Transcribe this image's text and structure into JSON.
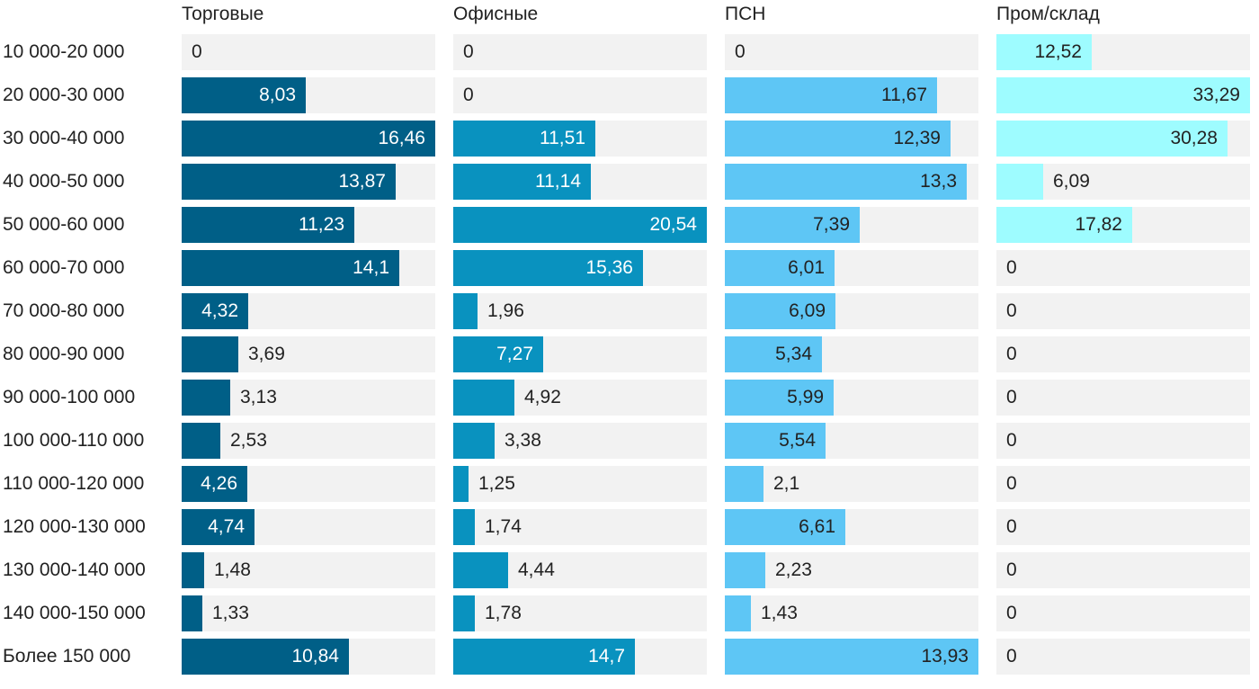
{
  "chart_data": {
    "type": "bar",
    "orientation": "horizontal",
    "layout": "small-multiples",
    "categories": [
      "10 000-20 000",
      "20 000-30 000",
      "30 000-40 000",
      "40 000-50 000",
      "50 000-60 000",
      "60 000-70 000",
      "70 000-80 000",
      "80 000-90 000",
      "90 000-100 000",
      "100 000-110 000",
      "110 000-120 000",
      "120 000-130 000",
      "130 000-140 000",
      "140 000-150 000",
      "Более 150 000"
    ],
    "series": [
      {
        "name": "Торговые",
        "color": "#005f87",
        "light_label": false,
        "values": [
          0,
          8.03,
          16.46,
          13.87,
          11.23,
          14.1,
          4.32,
          3.69,
          3.13,
          2.53,
          4.26,
          4.74,
          1.48,
          1.33,
          10.84
        ],
        "labels": [
          "0",
          "8,03",
          "16,46",
          "13,87",
          "11,23",
          "14,1",
          "4,32",
          "3,69",
          "3,13",
          "2,53",
          "4,26",
          "4,74",
          "1,48",
          "1,33",
          "10,84"
        ],
        "xlim": [
          0,
          16.46
        ]
      },
      {
        "name": "Офисные",
        "color": "#0992bf",
        "light_label": false,
        "values": [
          0,
          0,
          11.51,
          11.14,
          20.54,
          15.36,
          1.96,
          7.27,
          4.92,
          3.38,
          1.25,
          1.74,
          4.44,
          1.78,
          14.7
        ],
        "labels": [
          "0",
          "0",
          "11,51",
          "11,14",
          "20,54",
          "15,36",
          "1,96",
          "7,27",
          "4,92",
          "3,38",
          "1,25",
          "1,74",
          "4,44",
          "1,78",
          "14,7"
        ],
        "xlim": [
          0,
          20.54
        ]
      },
      {
        "name": "ПСН",
        "color": "#5ec6f5",
        "light_label": true,
        "values": [
          0,
          11.67,
          12.39,
          13.3,
          7.39,
          6.01,
          6.09,
          5.34,
          5.99,
          5.54,
          2.1,
          6.61,
          2.23,
          1.43,
          13.93
        ],
        "labels": [
          "0",
          "11,67",
          "12,39",
          "13,3",
          "7,39",
          "6,01",
          "6,09",
          "5,34",
          "5,99",
          "5,54",
          "2,1",
          "6,61",
          "2,23",
          "1,43",
          "13,93"
        ],
        "xlim": [
          0,
          13.93
        ]
      },
      {
        "name": "Пром/склад",
        "color": "#9efcff",
        "light_label": true,
        "values": [
          12.52,
          33.29,
          30.28,
          6.09,
          17.82,
          0,
          0,
          0,
          0,
          0,
          0,
          0,
          0,
          0,
          0
        ],
        "labels": [
          "12,52",
          "33,29",
          "30,28",
          "6,09",
          "17,82",
          "0",
          "0",
          "0",
          "0",
          "0",
          "0",
          "0",
          "0",
          "0",
          "0"
        ],
        "xlim": [
          0,
          33.29
        ]
      }
    ],
    "title": "",
    "xlabel": "",
    "ylabel": "",
    "grid": false,
    "legend": "none"
  }
}
